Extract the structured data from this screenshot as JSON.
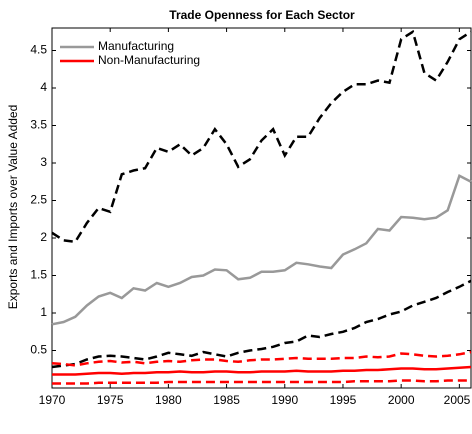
{
  "chart_data": {
    "type": "line",
    "title": "Trade Openness for Each Sector",
    "y_label": "Exports and Imports over Value Added",
    "x": [
      1970,
      1971,
      1972,
      1973,
      1974,
      1975,
      1976,
      1977,
      1978,
      1979,
      1980,
      1981,
      1982,
      1983,
      1984,
      1985,
      1986,
      1987,
      1988,
      1989,
      1990,
      1991,
      1992,
      1993,
      1994,
      1995,
      1996,
      1997,
      1998,
      1999,
      2000,
      2001,
      2002,
      2003,
      2004,
      2005,
      2006
    ],
    "xlim": [
      1970,
      2006
    ],
    "xticks": [
      1970,
      1975,
      1980,
      1985,
      1990,
      1995,
      2000,
      2005
    ],
    "ylim": [
      0,
      4.8
    ],
    "yticks": [
      0.5,
      1,
      1.5,
      2,
      2.5,
      3,
      3.5,
      4,
      4.5
    ],
    "legend_position": "upper-left",
    "series": [
      {
        "color": "#000000",
        "dashed": true,
        "values": [
          2.07,
          1.97,
          1.95,
          2.2,
          2.4,
          2.35,
          2.85,
          2.9,
          2.93,
          3.2,
          3.15,
          3.25,
          3.1,
          3.2,
          3.45,
          3.25,
          2.95,
          3.05,
          3.3,
          3.45,
          3.1,
          3.35,
          3.35,
          3.6,
          3.8,
          3.95,
          4.05,
          4.05,
          4.1,
          4.07,
          4.65,
          4.75,
          4.2,
          4.1,
          4.35,
          4.65,
          4.75
        ]
      },
      {
        "name": "Manufacturing",
        "color": "#999999",
        "dashed": false,
        "values": [
          0.85,
          0.88,
          0.95,
          1.1,
          1.22,
          1.27,
          1.2,
          1.33,
          1.3,
          1.4,
          1.35,
          1.4,
          1.48,
          1.5,
          1.58,
          1.57,
          1.45,
          1.47,
          1.55,
          1.55,
          1.57,
          1.67,
          1.65,
          1.62,
          1.6,
          1.78,
          1.85,
          1.93,
          2.12,
          2.1,
          2.28,
          2.27,
          2.25,
          2.27,
          2.37,
          2.83,
          2.75
        ]
      },
      {
        "color": "#000000",
        "dashed": true,
        "values": [
          0.28,
          0.3,
          0.32,
          0.38,
          0.42,
          0.43,
          0.42,
          0.4,
          0.38,
          0.42,
          0.47,
          0.45,
          0.43,
          0.48,
          0.45,
          0.42,
          0.47,
          0.5,
          0.52,
          0.55,
          0.6,
          0.62,
          0.7,
          0.68,
          0.72,
          0.75,
          0.8,
          0.88,
          0.92,
          0.98,
          1.02,
          1.1,
          1.15,
          1.2,
          1.28,
          1.35,
          1.43
        ]
      },
      {
        "color": "#ff0000",
        "dashed": true,
        "values": [
          0.33,
          0.32,
          0.3,
          0.33,
          0.35,
          0.36,
          0.34,
          0.35,
          0.33,
          0.35,
          0.36,
          0.35,
          0.37,
          0.38,
          0.38,
          0.36,
          0.35,
          0.37,
          0.38,
          0.38,
          0.39,
          0.4,
          0.39,
          0.39,
          0.39,
          0.4,
          0.4,
          0.42,
          0.41,
          0.42,
          0.46,
          0.45,
          0.43,
          0.42,
          0.43,
          0.45,
          0.48
        ]
      },
      {
        "name": "Non-Manufacturing",
        "color": "#ff0000",
        "dashed": false,
        "values": [
          0.18,
          0.18,
          0.18,
          0.19,
          0.2,
          0.2,
          0.19,
          0.2,
          0.2,
          0.21,
          0.21,
          0.22,
          0.21,
          0.21,
          0.22,
          0.22,
          0.21,
          0.21,
          0.22,
          0.22,
          0.22,
          0.23,
          0.22,
          0.22,
          0.22,
          0.23,
          0.23,
          0.24,
          0.24,
          0.25,
          0.26,
          0.26,
          0.25,
          0.25,
          0.26,
          0.27,
          0.28
        ]
      },
      {
        "color": "#ff0000",
        "dashed": true,
        "values": [
          0.06,
          0.06,
          0.06,
          0.06,
          0.07,
          0.07,
          0.07,
          0.07,
          0.07,
          0.07,
          0.08,
          0.08,
          0.08,
          0.08,
          0.08,
          0.08,
          0.08,
          0.08,
          0.08,
          0.08,
          0.08,
          0.08,
          0.08,
          0.08,
          0.08,
          0.08,
          0.09,
          0.09,
          0.09,
          0.09,
          0.1,
          0.1,
          0.09,
          0.09,
          0.1,
          0.1,
          0.1
        ]
      }
    ]
  }
}
